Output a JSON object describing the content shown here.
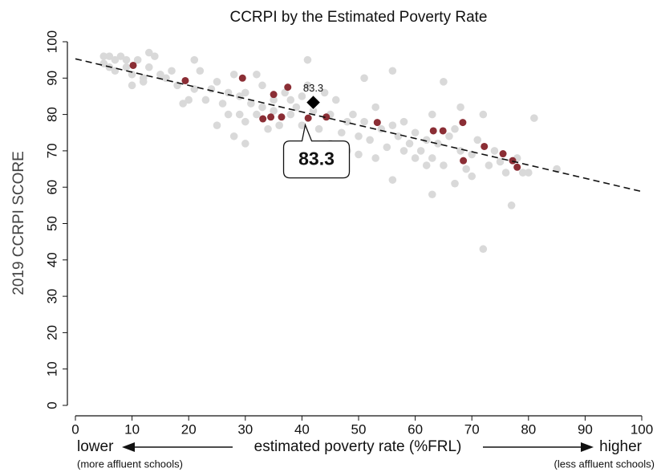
{
  "chart_data": {
    "type": "scatter",
    "title": "CCRPI by the Estimated Poverty Rate",
    "y_label": "2019 CCRPI SCORE",
    "x_label": "estimated poverty rate (%FRL)",
    "x_label_left": "lower",
    "x_label_right": "higher",
    "x_note_left": "(more affluent schools)",
    "x_note_right": "(less affluent schools)",
    "xlim": [
      0,
      100
    ],
    "xticks": [
      0,
      10,
      20,
      30,
      40,
      50,
      60,
      70,
      80,
      90,
      100
    ],
    "ylim": [
      0,
      100
    ],
    "yticks": [
      0,
      10,
      20,
      30,
      40,
      50,
      60,
      70,
      80,
      90,
      100
    ],
    "series": [
      {
        "color": "#d9d9d9",
        "x": [
          5,
          5,
          6,
          6,
          7,
          7,
          8,
          9,
          9,
          10,
          10,
          11,
          12,
          12,
          13,
          13,
          14,
          15,
          16,
          17,
          18,
          19,
          20,
          21,
          21,
          22,
          23,
          24,
          25,
          25,
          26,
          27,
          27,
          28,
          28,
          29,
          29,
          30,
          30,
          30,
          31,
          32,
          32,
          33,
          33,
          34,
          35,
          35,
          36,
          37,
          38,
          38,
          39,
          40,
          40,
          41,
          41,
          42,
          43,
          44,
          45,
          45,
          46,
          47,
          48,
          48,
          49,
          50,
          50,
          51,
          51,
          52,
          53,
          53,
          54,
          55,
          56,
          56,
          56,
          57,
          58,
          58,
          59,
          60,
          60,
          61,
          62,
          62,
          63,
          63,
          63,
          64,
          65,
          65,
          66,
          67,
          67,
          68,
          68,
          69,
          70,
          70,
          71,
          72,
          72,
          73,
          74,
          75,
          76,
          77,
          78,
          79,
          80,
          81,
          85
        ],
        "values": [
          96,
          94,
          93,
          96,
          95,
          92,
          96,
          95,
          93,
          91,
          88,
          95,
          90,
          89,
          97,
          93,
          96,
          91,
          90,
          92,
          88,
          83,
          84,
          95,
          87,
          92,
          84,
          87,
          89,
          77,
          83,
          80,
          86,
          91,
          74,
          85,
          80,
          86,
          78,
          72,
          83,
          91,
          80,
          88,
          82,
          76,
          84,
          81,
          77,
          86,
          84,
          80,
          82,
          85,
          77,
          95,
          88,
          81,
          76,
          86,
          80,
          72,
          84,
          75,
          78,
          70,
          80,
          74,
          69,
          90,
          78,
          73,
          82,
          68,
          76,
          71,
          92,
          77,
          62,
          74,
          78,
          70,
          72,
          75,
          68,
          70,
          73,
          66,
          80,
          68,
          58,
          72,
          89,
          66,
          74,
          61,
          76,
          82,
          70,
          65,
          69,
          63,
          73,
          43,
          80,
          66,
          70,
          67,
          64,
          55,
          68,
          64,
          64,
          79,
          65
        ]
      },
      {
        "color": "#8b2e35",
        "x": [
          10.2,
          19.4,
          29.5,
          35,
          37.5,
          33.1,
          34.5,
          36.4,
          41.1,
          44.3,
          53.3,
          63.2,
          64.9,
          68.4,
          68.5,
          72.2,
          75.5,
          77.2,
          78
        ],
        "values": [
          93.5,
          89.3,
          90,
          85.5,
          87.5,
          78.8,
          79.3,
          79.3,
          79,
          79.3,
          77.8,
          75.5,
          75.5,
          77.8,
          67.3,
          71.2,
          69.2,
          67.3,
          65.5
        ]
      }
    ],
    "highlight": {
      "x": 42,
      "y": 83.3,
      "color": "#000000"
    },
    "trend": {
      "x": [
        0,
        100
      ],
      "y": [
        95.3,
        58.8
      ]
    }
  }
}
